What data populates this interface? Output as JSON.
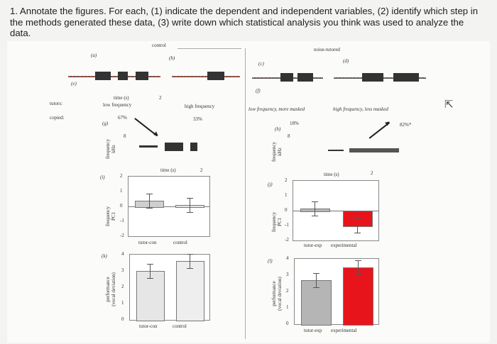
{
  "question": "1. Annotate the figures. For each, (1) indicate the dependent and independent variables, (2) identify which step in the methods generated these data, (3) write down which statistical analysis you think was used to analyze the data.",
  "figure": {
    "control_header": "control",
    "noise_header": "noise-tutored",
    "panels": {
      "a": "(a)",
      "b": "(b)",
      "c": "(c)",
      "d": "(d)",
      "e": "(e)",
      "f": "(f)",
      "g": "(g)",
      "h": "(h)",
      "i": "(i)",
      "j": "(j)",
      "k": "(k)",
      "l": "(l)"
    },
    "row_labels": {
      "tutors": "tutors:",
      "copied": "copied:"
    },
    "time_label": "time (s)",
    "low_freq": "low frequency",
    "high_freq": "high frequency",
    "low_freq_masked": "low frequency, more masked",
    "high_freq_masked": "high frequency, less masked",
    "pct_control_low": "67%",
    "pct_control_high": "33%",
    "pct_noise_low": "18%",
    "pct_noise_high": "82%*",
    "tick_2": "2",
    "tick_8": "8",
    "freq_khz": "frequency\nkHz",
    "freq_pc1": "frequency\nPC1",
    "performance": "performance\n(vocal deviation)",
    "yticks_freq": [
      "2",
      "1",
      "0",
      "-1",
      "-2"
    ],
    "yticks_perf": [
      "4",
      "3",
      "2",
      "1",
      "0"
    ],
    "x_control": [
      "tutor-con",
      "control"
    ],
    "x_experimental": [
      "tutor-exp",
      "experimental"
    ],
    "colors": {
      "gray": "#b5b5b5",
      "red": "#e8141c"
    }
  },
  "chart_data": [
    {
      "type": "bar",
      "title": "",
      "ylabel": "frequency PC1",
      "categories": [
        "tutor-con",
        "control"
      ],
      "values": [
        0.4,
        0.1
      ],
      "ylim": [
        -2,
        2
      ]
    },
    {
      "type": "bar",
      "title": "",
      "ylabel": "frequency PC1",
      "categories": [
        "tutor-exp",
        "experimental"
      ],
      "values": [
        0.15,
        -1.0
      ],
      "ylim": [
        -2,
        2
      ]
    },
    {
      "type": "bar",
      "title": "",
      "ylabel": "performance (vocal deviation)",
      "categories": [
        "tutor-con",
        "control"
      ],
      "values": [
        3.0,
        3.6
      ],
      "ylim": [
        0,
        4
      ]
    },
    {
      "type": "bar",
      "title": "",
      "ylabel": "performance (vocal deviation)",
      "categories": [
        "tutor-exp",
        "experimental"
      ],
      "values": [
        2.7,
        3.5
      ],
      "ylim": [
        0,
        4
      ]
    }
  ]
}
